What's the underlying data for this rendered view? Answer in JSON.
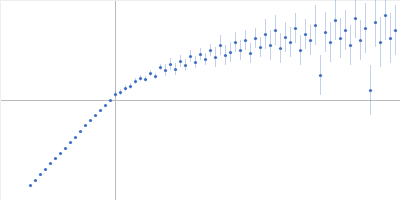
{
  "chart_data": {
    "type": "scatter",
    "color": "#3f6fc4",
    "grid": true,
    "tick_labels": false,
    "xlim": [
      -1.15,
      2.85
    ],
    "ylim": [
      -1,
      1
    ],
    "xticks": [
      0
    ],
    "yticks": [
      0
    ],
    "x": [
      -0.85,
      -0.8,
      -0.75,
      -0.7,
      -0.65,
      -0.6,
      -0.55,
      -0.5,
      -0.45,
      -0.4,
      -0.35,
      -0.3,
      -0.25,
      -0.2,
      -0.15,
      -0.1,
      -0.05,
      0.0,
      0.05,
      0.1,
      0.15,
      0.2,
      0.25,
      0.3,
      0.35,
      0.4,
      0.45,
      0.5,
      0.55,
      0.6,
      0.65,
      0.7,
      0.75,
      0.8,
      0.85,
      0.9,
      0.95,
      1.0,
      1.05,
      1.1,
      1.15,
      1.2,
      1.25,
      1.3,
      1.35,
      1.4,
      1.45,
      1.5,
      1.55,
      1.6,
      1.65,
      1.7,
      1.75,
      1.8,
      1.85,
      1.9,
      1.95,
      2.0,
      2.05,
      2.1,
      2.15,
      2.2,
      2.25,
      2.3,
      2.35,
      2.4,
      2.45,
      2.5,
      2.55,
      2.6,
      2.65,
      2.7,
      2.75,
      2.8
    ],
    "values": [
      -0.85,
      -0.8,
      -0.74,
      -0.69,
      -0.63,
      -0.58,
      -0.53,
      -0.48,
      -0.42,
      -0.37,
      -0.31,
      -0.25,
      -0.2,
      -0.15,
      -0.1,
      -0.05,
      0.0,
      0.06,
      0.08,
      0.12,
      0.14,
      0.19,
      0.22,
      0.21,
      0.27,
      0.24,
      0.33,
      0.3,
      0.36,
      0.31,
      0.39,
      0.35,
      0.44,
      0.38,
      0.46,
      0.41,
      0.5,
      0.43,
      0.55,
      0.45,
      0.48,
      0.58,
      0.5,
      0.6,
      0.47,
      0.62,
      0.53,
      0.66,
      0.55,
      0.7,
      0.52,
      0.63,
      0.58,
      0.72,
      0.5,
      0.66,
      0.6,
      0.75,
      0.25,
      0.68,
      0.58,
      0.8,
      0.62,
      0.7,
      0.55,
      0.82,
      0.6,
      0.72,
      0.1,
      0.78,
      0.58,
      0.85,
      0.62,
      0.7
    ],
    "errors": [
      0.01,
      0.01,
      0.01,
      0.01,
      0.01,
      0.01,
      0.01,
      0.01,
      0.01,
      0.01,
      0.01,
      0.01,
      0.01,
      0.01,
      0.01,
      0.01,
      0.01,
      0.03,
      0.03,
      0.03,
      0.03,
      0.03,
      0.03,
      0.03,
      0.03,
      0.03,
      0.03,
      0.06,
      0.06,
      0.06,
      0.06,
      0.06,
      0.06,
      0.06,
      0.06,
      0.06,
      0.06,
      0.1,
      0.1,
      0.1,
      0.1,
      0.1,
      0.1,
      0.1,
      0.1,
      0.1,
      0.1,
      0.15,
      0.15,
      0.15,
      0.15,
      0.15,
      0.15,
      0.15,
      0.15,
      0.15,
      0.15,
      0.2,
      0.2,
      0.2,
      0.2,
      0.2,
      0.2,
      0.2,
      0.2,
      0.2,
      0.2,
      0.25,
      0.25,
      0.25,
      0.25,
      0.25,
      0.25,
      0.25
    ]
  }
}
